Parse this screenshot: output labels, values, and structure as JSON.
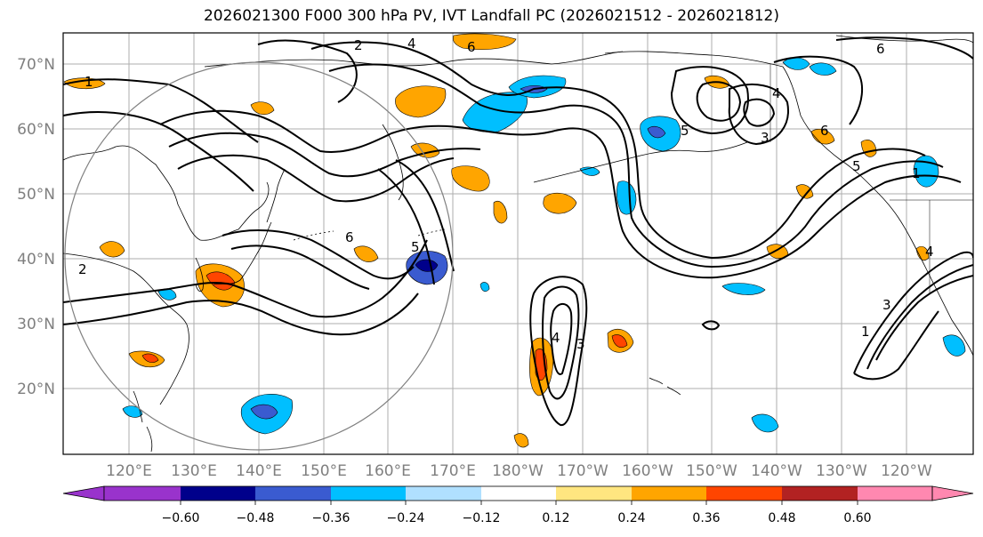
{
  "title": "2026021300 F000 300 hPa PV, IVT Landfall PC (2026021512 - 2026021812)",
  "lat_labels": [
    "70°N",
    "60°N",
    "50°N",
    "40°N",
    "30°N",
    "20°N"
  ],
  "lon_labels": [
    "120°E",
    "130°E",
    "140°E",
    "150°E",
    "160°E",
    "170°E",
    "180°W",
    "170°W",
    "160°W",
    "150°W",
    "140°W",
    "130°W",
    "120°W"
  ],
  "colorbar": {
    "ticks": [
      "−0.60",
      "−0.48",
      "−0.36",
      "−0.24",
      "−0.12",
      "0.12",
      "0.24",
      "0.36",
      "0.48",
      "0.60"
    ],
    "colors": [
      "#9933cc",
      "#00008b",
      "#3a5bd0",
      "#00bfff",
      "#b0e0ff",
      "#ffffff",
      "#ffe680",
      "#ffa500",
      "#ff4500",
      "#b22222",
      "#ff88b0"
    ]
  },
  "pv_contour_labels": [
    "1",
    "2",
    "2",
    "4",
    "6",
    "6",
    "5",
    "4",
    "3",
    "4",
    "6",
    "6",
    "1",
    "3",
    "4",
    "5",
    "1",
    "5",
    "3"
  ],
  "colors": {
    "coastline": "#000000",
    "grid": "#999999",
    "circle": "#808080"
  }
}
